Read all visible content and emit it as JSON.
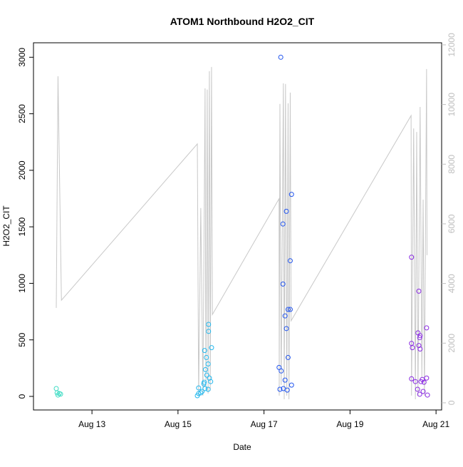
{
  "chart_data": {
    "type": "scatter",
    "title": "ATOM1 Northbound H2O2_CIT",
    "x_label": "Date",
    "y_label": "H2O2_CIT",
    "xlim": [
      11.64,
      21.13
    ],
    "xticks": [
      {
        "value": 13,
        "label": "Aug 13"
      },
      {
        "value": 15,
        "label": "Aug 15"
      },
      {
        "value": 17,
        "label": "Aug 17"
      },
      {
        "value": 19,
        "label": "Aug 19"
      },
      {
        "value": 21,
        "label": "Aug 21"
      }
    ],
    "ylim": [
      -120,
      3128
    ],
    "yticks": [
      0,
      500,
      1000,
      1500,
      2000,
      2500,
      3000
    ],
    "y2lim": [
      -240,
      12070
    ],
    "y2ticks": [
      0,
      2000,
      4000,
      6000,
      8000,
      10000,
      12000
    ],
    "y2_color": "#bebebe",
    "series": [
      {
        "type": "scatter",
        "color": "#3fdcc4",
        "x": [
          12.17,
          12.19,
          12.21,
          12.24,
          12.27
        ],
        "values": [
          69,
          31,
          12,
          25,
          20
        ]
      },
      {
        "type": "scatter",
        "color": "#22b8ee",
        "x": [
          15.45,
          15.48,
          15.48,
          15.53,
          15.56,
          15.6,
          15.61,
          15.62,
          15.63,
          15.64,
          15.66,
          15.67,
          15.7,
          15.7,
          15.71,
          15.71,
          15.73,
          15.76,
          15.78
        ],
        "values": [
          6,
          25,
          75,
          31,
          44,
          112,
          125,
          406,
          69,
          237,
          344,
          188,
          287,
          63,
          637,
          575,
          162,
          131,
          431
        ]
      },
      {
        "type": "scatter",
        "color": "#2255ee",
        "x": [
          17.39,
          17.44,
          17.52,
          17.64,
          17.61,
          17.44,
          17.49,
          17.56,
          17.61,
          17.52,
          17.56,
          17.49,
          17.35,
          17.4,
          17.37,
          17.45,
          17.54,
          17.64
        ],
        "values": [
          3000,
          1525,
          1637,
          1787,
          1200,
          994,
          712,
          769,
          769,
          600,
          344,
          144,
          256,
          225,
          63,
          69,
          56,
          100
        ]
      },
      {
        "type": "scatter",
        "color": "#8a2be2",
        "x": [
          20.43,
          20.43,
          20.45,
          20.6,
          20.43,
          20.52,
          20.58,
          20.62,
          20.63,
          20.6,
          20.63,
          20.57,
          20.78,
          20.62,
          20.65,
          20.68,
          20.7,
          20.78,
          20.8,
          20.72
        ],
        "values": [
          1231,
          469,
          431,
          931,
          156,
          131,
          562,
          519,
          537,
          450,
          419,
          63,
          606,
          19,
          131,
          150,
          44,
          162,
          12,
          125
        ]
      },
      {
        "type": "line",
        "axis": "y2",
        "color": "#c8c8c8",
        "x": [
          12.17,
          12.21,
          12.29,
          15.45,
          15.48,
          15.53,
          15.58,
          15.63,
          15.65,
          15.68,
          15.7,
          15.73,
          15.75,
          15.78,
          15.8,
          17.35,
          17.354,
          17.37,
          17.4,
          17.45,
          17.47,
          17.5,
          17.53,
          17.56,
          17.58,
          17.61,
          17.63,
          20.42,
          20.43,
          20.48,
          20.52,
          20.55,
          20.58,
          20.63,
          20.67,
          20.7,
          20.73,
          20.78,
          20.79
        ],
        "values": [
          3180,
          10950,
          3440,
          8680,
          240,
          6530,
          240,
          10540,
          480,
          10500,
          310,
          11120,
          410,
          11260,
          2960,
          6840,
          240,
          10020,
          600,
          10710,
          120,
          10690,
          240,
          10040,
          120,
          10400,
          2750,
          9630,
          240,
          9200,
          120,
          9080,
          220,
          9920,
          840,
          6810,
          240,
          11190,
          4950
        ]
      }
    ]
  }
}
